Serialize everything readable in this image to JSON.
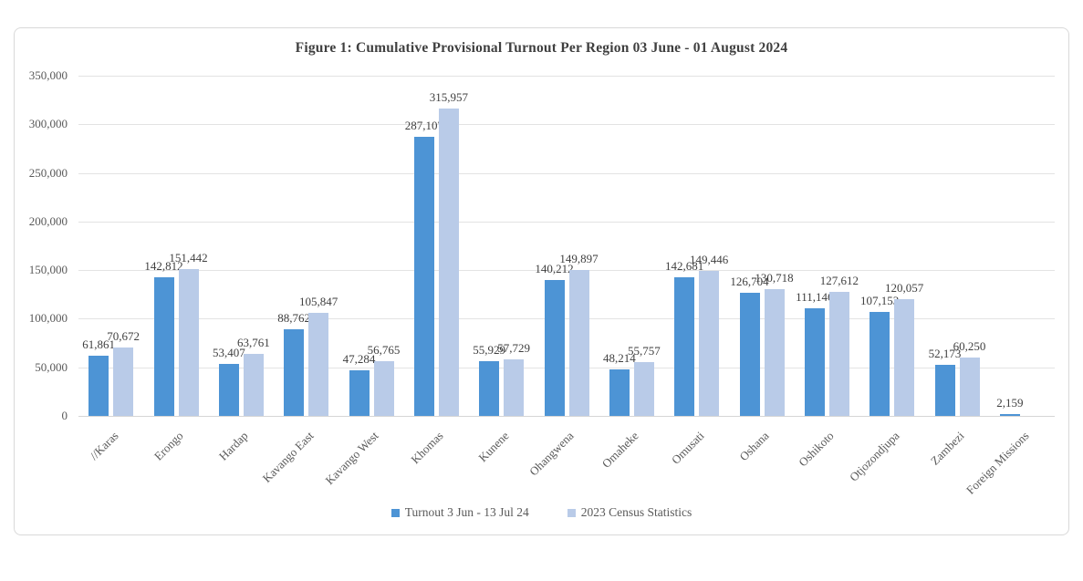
{
  "figure": {
    "title": "Figure 1: Cumulative Provisional Turnout Per Region 03 June - 01 August 2024"
  },
  "chart_data": {
    "type": "bar",
    "title": "Figure 1: Cumulative Provisional Turnout Per Region 03 June - 01 August 2024",
    "categories": [
      "//Karas",
      "Erongo",
      "Hardap",
      "Kavango East",
      "Kavango West",
      "Khomas",
      "Kunene",
      "Ohangwena",
      "Omaheke",
      "Omusati",
      "Oshana",
      "Oshikoto",
      "Otjozondjupa",
      "Zambezi",
      "Foreign Missions"
    ],
    "series": [
      {
        "name": "Turnout 3 Jun - 13 Jul 24",
        "color": "#4d94d5",
        "values": [
          61861,
          142812,
          53407,
          88762,
          47284,
          287107,
          55929,
          140212,
          48214,
          142681,
          126704,
          111146,
          107153,
          52173,
          2159
        ]
      },
      {
        "name": "2023 Census Statistics",
        "color": "#b9cbe8",
        "values": [
          70672,
          151442,
          63761,
          105847,
          56765,
          315957,
          57729,
          149897,
          55757,
          149446,
          130718,
          127612,
          120057,
          60250,
          null
        ]
      }
    ],
    "ylim": [
      0,
      350000
    ],
    "ytick_step": 50000,
    "ytick_labels": [
      "0",
      "50,000",
      "100,000",
      "150,000",
      "200,000",
      "250,000",
      "300,000",
      "350,000"
    ],
    "grid": true,
    "data_labels": true,
    "legend_position": "bottom",
    "x_label_rotation": -45
  },
  "style": {
    "series1_color": "#4d94d5",
    "series2_color": "#b9cbe8",
    "gridline_color": "#e3e3e3",
    "axis_line_color": "#d6d6d6",
    "tick_text_color": "#595959",
    "data_label_color": "#3f3f3f",
    "title_color": "#3f3f3f",
    "frame_border_color": "#d9d9d9"
  }
}
